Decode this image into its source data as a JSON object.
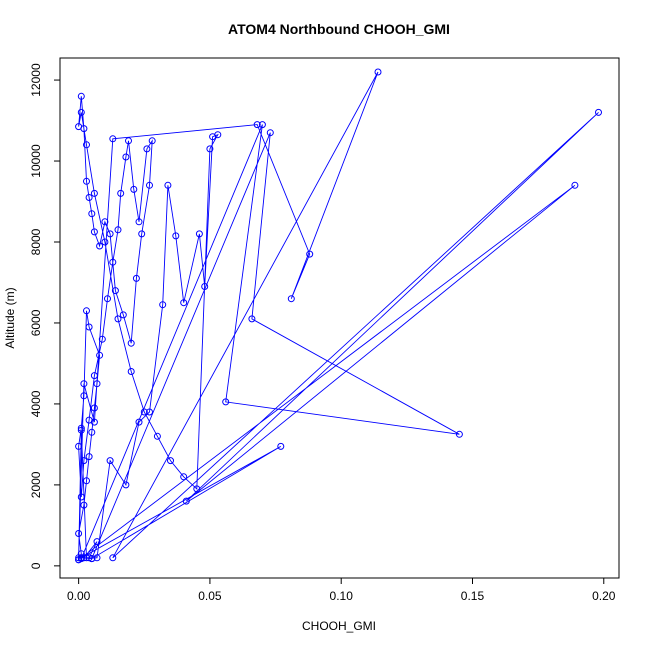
{
  "chart_data": {
    "type": "line",
    "title": "ATOM4 Northbound CHOOH_GMI",
    "xlabel": "CHOOH_GMI",
    "ylabel": "Altitude (m)",
    "xlim": [
      -0.0071,
      0.2058
    ],
    "ylim": [
      -300,
      12545
    ],
    "x_ticks": [
      0.0,
      0.05,
      0.1,
      0.15,
      0.2
    ],
    "x_tick_labels": [
      "0.00",
      "0.05",
      "0.10",
      "0.15",
      "0.20"
    ],
    "y_ticks": [
      0,
      2000,
      4000,
      6000,
      8000,
      10000,
      12000
    ],
    "y_tick_labels": [
      "0",
      "2000",
      "4000",
      "6000",
      "8000",
      "10000",
      "12000"
    ],
    "grid": false,
    "color": "#0000ff",
    "marker": "open-circle",
    "series": [
      {
        "x": [
          0.0,
          0.001,
          0.0,
          0.002,
          0.003,
          0.004,
          0.005,
          0.006,
          0.007,
          0.008,
          0.004,
          0.003,
          0.002,
          0.001,
          0.0,
          0.001,
          0.002,
          0.004,
          0.006,
          0.009,
          0.011,
          0.013,
          0.015,
          0.016,
          0.018,
          0.019,
          0.021,
          0.023,
          0.026,
          0.028,
          0.027,
          0.024,
          0.022,
          0.02,
          0.017,
          0.014,
          0.012,
          0.01,
          0.008,
          0.006,
          0.005,
          0.004,
          0.003,
          0.002,
          0.001,
          0.0,
          0.001,
          0.003,
          0.006,
          0.01,
          0.015,
          0.02,
          0.025,
          0.03,
          0.035,
          0.04,
          0.045,
          0.05,
          0.053,
          0.051,
          0.048,
          0.046,
          0.04,
          0.037,
          0.034,
          0.032,
          0.027,
          0.023,
          0.018,
          0.012,
          0.007,
          0.003,
          0.001,
          0.0,
          0.002,
          0.006,
          0.013,
          0.068,
          0.088,
          0.081,
          0.114,
          0.013,
          0.198,
          0.041,
          0.189,
          0.001,
          0.077,
          0.005,
          0.073,
          0.066,
          0.145,
          0.056,
          0.07,
          0.001,
          0.0,
          0.004,
          0.007,
          0.002,
          0.005,
          0.001
        ],
        "y": [
          150,
          300,
          800,
          1500,
          2100,
          2700,
          3300,
          3900,
          4500,
          5200,
          5900,
          6300,
          4200,
          3400,
          2950,
          1700,
          2600,
          3600,
          4700,
          5600,
          6600,
          7500,
          8300,
          9200,
          10100,
          10500,
          9300,
          8500,
          10300,
          10500,
          9400,
          8200,
          7100,
          5500,
          6200,
          6800,
          8200,
          8500,
          7900,
          8250,
          8700,
          9100,
          9500,
          10800,
          11600,
          10850,
          11200,
          10400,
          9200,
          8000,
          6100,
          4800,
          3800,
          3200,
          2600,
          2200,
          1900,
          10300,
          10650,
          10600,
          6900,
          8200,
          6500,
          8150,
          9400,
          6450,
          3800,
          3550,
          2000,
          2600,
          200,
          200,
          3350,
          150,
          4500,
          3550,
          10550,
          10900,
          7700,
          6600,
          12200,
          200,
          11200,
          1600,
          9400,
          200,
          2950,
          180,
          10700,
          6100,
          3250,
          4050,
          10900,
          180,
          200,
          200,
          600,
          200,
          180,
          200
        ]
      }
    ]
  }
}
